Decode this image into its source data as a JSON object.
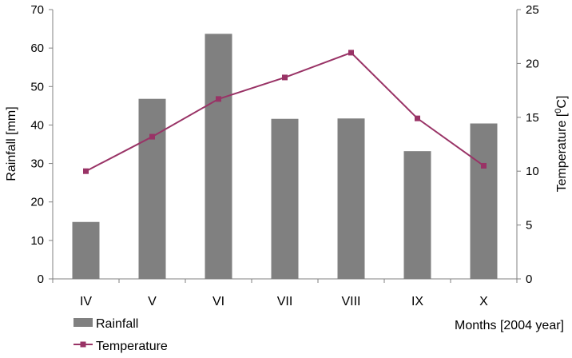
{
  "chart_data": {
    "type": "bar+line",
    "categories": [
      "IV",
      "V",
      "VI",
      "VII",
      "VIII",
      "IX",
      "X"
    ],
    "series": [
      {
        "name": "Rainfall",
        "type": "bar",
        "axis": "left",
        "color": "#808080",
        "values": [
          14.8,
          46.8,
          63.7,
          41.6,
          41.7,
          33.2,
          40.4
        ]
      },
      {
        "name": "Temperature",
        "type": "line",
        "axis": "right",
        "color": "#993366",
        "marker": "square",
        "values": [
          10.0,
          13.2,
          16.7,
          18.7,
          21.0,
          14.9,
          10.5
        ]
      }
    ],
    "ylabel": "Rainfall [mm]",
    "ylim": [
      0,
      70
    ],
    "yticks": [
      0,
      10,
      20,
      30,
      40,
      50,
      60,
      70
    ],
    "y2label_main": "Temperature [",
    "y2label_sup": "0",
    "y2label_end": "C]",
    "y2lim": [
      0,
      25
    ],
    "y2ticks": [
      0,
      5,
      10,
      15,
      20,
      25
    ],
    "xlabel": "Months [2004 year]",
    "grid": false,
    "legend": "bottom-left"
  }
}
